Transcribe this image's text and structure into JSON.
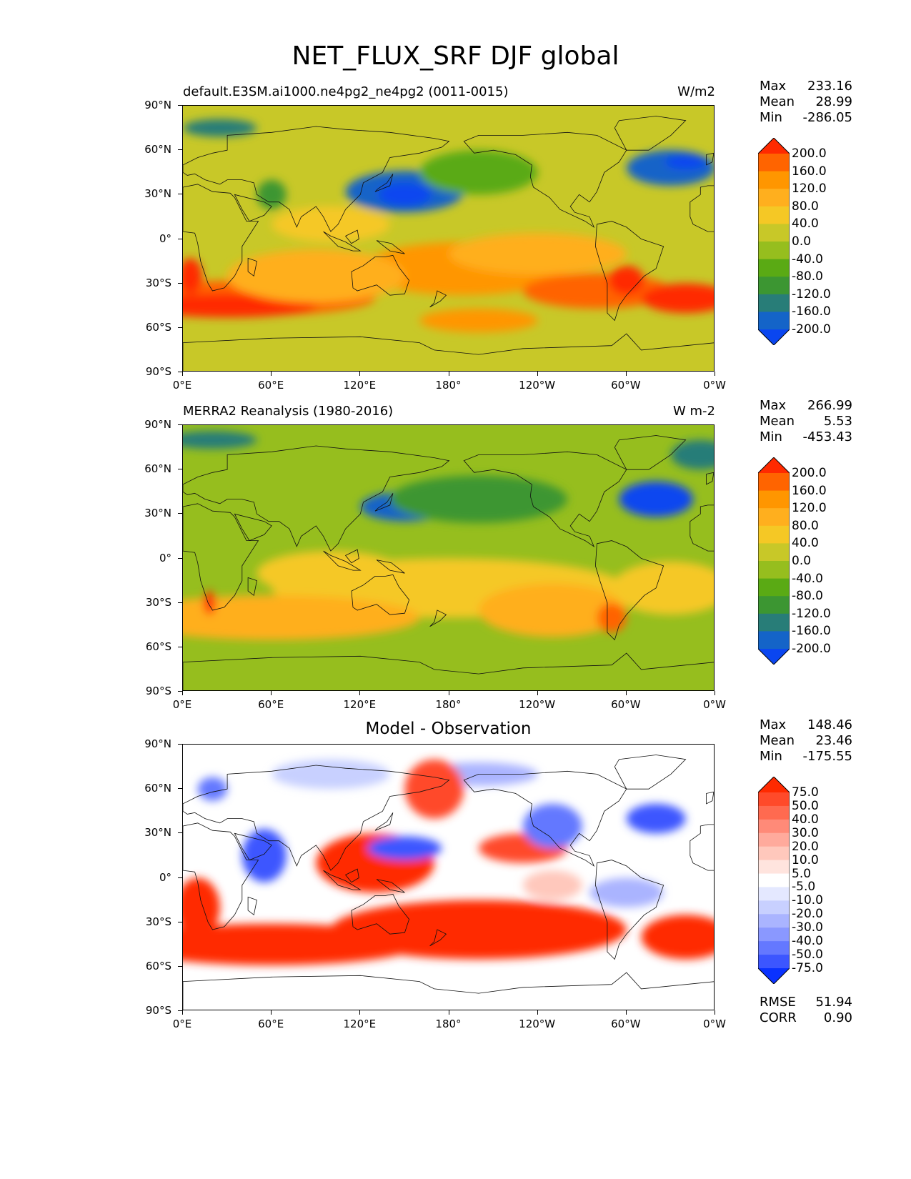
{
  "figure": {
    "title": "NET_FLUX_SRF DJF global"
  },
  "axes": {
    "yticks": [
      "90°N",
      "60°N",
      "30°N",
      "0°",
      "30°S",
      "60°S",
      "90°S"
    ],
    "xticks": [
      "0°E",
      "60°E",
      "120°E",
      "180°",
      "120°W",
      "60°W",
      "0°W"
    ]
  },
  "panels": [
    {
      "title_left": "default.E3SM.ai1000.ne4pg2_ne4pg2 (0011-0015)",
      "title_right": "W/m2",
      "title_center": "",
      "stats": {
        "max_label": "Max",
        "max": "233.16",
        "mean_label": "Mean",
        "mean": "28.99",
        "min_label": "Min",
        "min": "-286.05"
      },
      "colorbar": {
        "levels": [
          "200.0",
          "160.0",
          "120.0",
          "80.0",
          "40.0",
          "0.0",
          "-40.0",
          "-80.0",
          "-120.0",
          "-160.0",
          "-200.0"
        ],
        "colors": [
          "#ff2a00",
          "#ff6400",
          "#ff9600",
          "#ffaf1e",
          "#f5c825",
          "#c8c828",
          "#96be1e",
          "#5aaa14",
          "#3c9632",
          "#287d78",
          "#1464c8",
          "#0a46f0"
        ]
      }
    },
    {
      "title_left": "MERRA2 Reanalysis (1980-2016)",
      "title_right": "W m-2",
      "title_center": "",
      "stats": {
        "max_label": "Max",
        "max": "266.99",
        "mean_label": "Mean",
        "mean": "5.53",
        "min_label": "Min",
        "min": "-453.43"
      },
      "colorbar": {
        "levels": [
          "200.0",
          "160.0",
          "120.0",
          "80.0",
          "40.0",
          "0.0",
          "-40.0",
          "-80.0",
          "-120.0",
          "-160.0",
          "-200.0"
        ],
        "colors": [
          "#ff2a00",
          "#ff6400",
          "#ff9600",
          "#ffaf1e",
          "#f5c825",
          "#c8c828",
          "#96be1e",
          "#5aaa14",
          "#3c9632",
          "#287d78",
          "#1464c8",
          "#0a46f0"
        ]
      }
    },
    {
      "title_left": "",
      "title_right": "",
      "title_center": "Model - Observation",
      "stats": {
        "max_label": "Max",
        "max": "148.46",
        "mean_label": "Mean",
        "mean": "23.46",
        "min_label": "Min",
        "min": "-175.55"
      },
      "colorbar": {
        "levels": [
          "75.0",
          "50.0",
          "40.0",
          "30.0",
          "20.0",
          "10.0",
          "5.0",
          "-5.0",
          "-10.0",
          "-20.0",
          "-30.0",
          "-40.0",
          "-50.0",
          "-75.0"
        ],
        "colors": [
          "#ff2a00",
          "#ff4a2a",
          "#ff6a50",
          "#ff8a78",
          "#ffaa9c",
          "#ffc8bc",
          "#ffe4de",
          "#ffffff",
          "#e4e8ff",
          "#c8d0ff",
          "#aab4ff",
          "#8a98ff",
          "#6478ff",
          "#3c56ff",
          "#0a32ff"
        ]
      },
      "metrics": {
        "rmse_label": "RMSE",
        "rmse": "51.94",
        "corr_label": "CORR",
        "corr": "0.90"
      }
    }
  ]
}
